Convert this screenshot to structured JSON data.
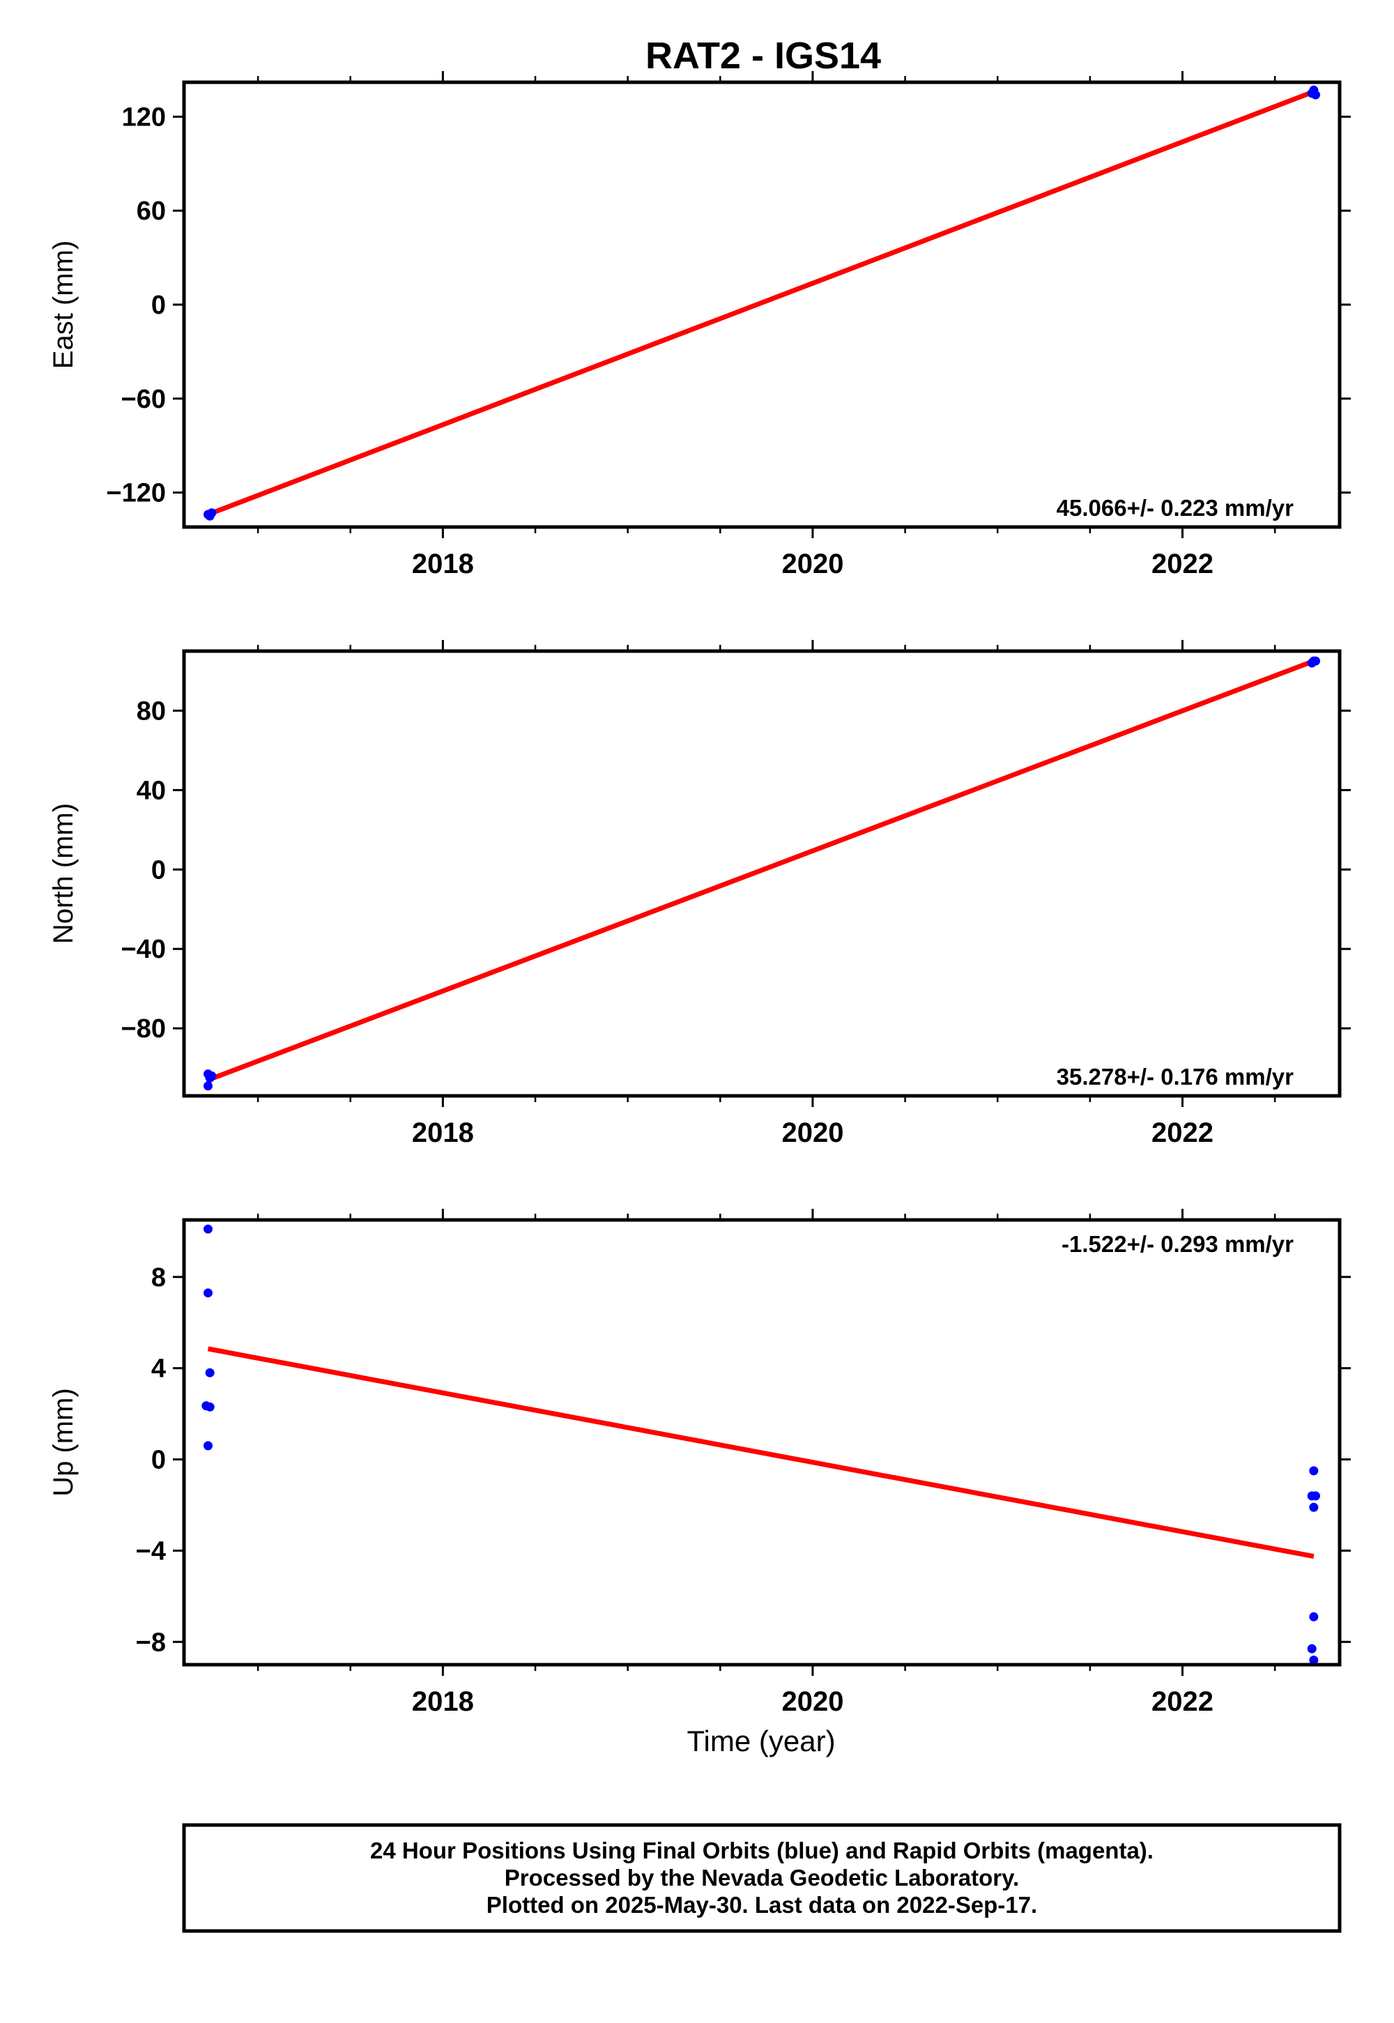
{
  "chart_data": {
    "type": "scatter",
    "title": "RAT2 - IGS14",
    "colors": {
      "points": "#0000ff",
      "fit": "#ff0000",
      "frame": "#000000"
    },
    "panels": [
      {
        "ylabel": "East (mm)",
        "ylim": [
          -142,
          142
        ],
        "yticks": [
          120,
          60,
          0,
          -60,
          -120
        ],
        "ytick_labels": [
          "120",
          "60",
          "0",
          "−60",
          "−120"
        ],
        "xticks": [
          2018,
          2020,
          2022
        ],
        "xtick_labels": [
          "2018",
          "2020",
          "2022"
        ],
        "xlabel": "",
        "rate": "45.066+/- 0.223 mm/yr",
        "rate_position": "bottom-right",
        "fit": {
          "x": [
            2016.73,
            2022.71
          ],
          "y": [
            -134,
            136
          ]
        },
        "points": [
          {
            "x": 2016.73,
            "y": -134
          },
          {
            "x": 2016.74,
            "y": -135
          },
          {
            "x": 2016.75,
            "y": -133
          },
          {
            "x": 2022.7,
            "y": 135
          },
          {
            "x": 2022.71,
            "y": 137
          },
          {
            "x": 2022.72,
            "y": 134
          }
        ]
      },
      {
        "ylabel": "North (mm)",
        "ylim": [
          -114,
          110
        ],
        "yticks": [
          80,
          40,
          0,
          -40,
          -80
        ],
        "ytick_labels": [
          "80",
          "40",
          "0",
          "−40",
          "−80"
        ],
        "xticks": [
          2018,
          2020,
          2022
        ],
        "xtick_labels": [
          "2018",
          "2020",
          "2022"
        ],
        "xlabel": "",
        "rate": "35.278+/- 0.176 mm/yr",
        "rate_position": "bottom-right",
        "fit": {
          "x": [
            2016.73,
            2022.71
          ],
          "y": [
            -106,
            105
          ]
        },
        "points": [
          {
            "x": 2016.73,
            "y": -103
          },
          {
            "x": 2016.74,
            "y": -105
          },
          {
            "x": 2016.73,
            "y": -109
          },
          {
            "x": 2016.75,
            "y": -104
          },
          {
            "x": 2022.7,
            "y": 104
          },
          {
            "x": 2022.71,
            "y": 105
          },
          {
            "x": 2022.72,
            "y": 105
          }
        ]
      },
      {
        "ylabel": "Up (mm)",
        "ylim": [
          -9,
          10.5
        ],
        "yticks": [
          8,
          4,
          0,
          -4,
          -8
        ],
        "ytick_labels": [
          "8",
          "4",
          "0",
          "−4",
          "−8"
        ],
        "xticks": [
          2018,
          2020,
          2022
        ],
        "xtick_labels": [
          "2018",
          "2020",
          "2022"
        ],
        "xlabel": "Time (year)",
        "rate": "-1.522+/- 0.293 mm/yr",
        "rate_position": "top-right",
        "fit": {
          "x": [
            2016.73,
            2022.71
          ],
          "y": [
            4.85,
            -4.25
          ]
        },
        "points": [
          {
            "x": 2016.73,
            "y": 10.1
          },
          {
            "x": 2016.73,
            "y": 7.3
          },
          {
            "x": 2016.74,
            "y": 3.8
          },
          {
            "x": 2016.72,
            "y": 2.35
          },
          {
            "x": 2016.74,
            "y": 2.3
          },
          {
            "x": 2016.73,
            "y": 0.6
          },
          {
            "x": 2022.71,
            "y": -0.5
          },
          {
            "x": 2022.7,
            "y": -1.6
          },
          {
            "x": 2022.72,
            "y": -1.6
          },
          {
            "x": 2022.71,
            "y": -2.1
          },
          {
            "x": 2022.71,
            "y": -6.9
          },
          {
            "x": 2022.7,
            "y": -8.3
          },
          {
            "x": 2022.71,
            "y": -8.8
          }
        ]
      }
    ],
    "xlim": [
      2016.6,
      2022.85
    ],
    "minor_xticks": [
      2017,
      2017.5,
      2018.5,
      2019,
      2019.5,
      2020.5,
      2021,
      2021.5,
      2022.5
    ]
  },
  "footer": {
    "line1": "24 Hour Positions Using Final Orbits (blue) and Rapid Orbits (magenta).",
    "line2": "Processed by the Nevada Geodetic Laboratory.",
    "line3": "Plotted on 2025-May-30. Last data on 2022-Sep-17."
  }
}
